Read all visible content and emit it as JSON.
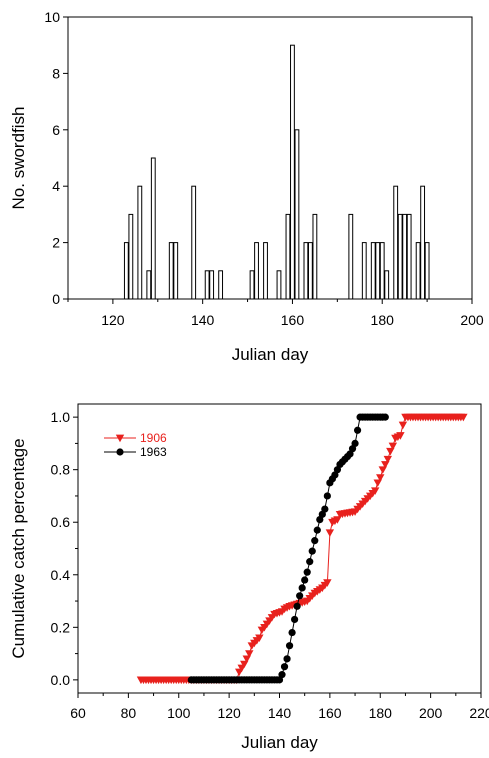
{
  "chart_data": [
    {
      "type": "bar",
      "xlabel": "Julian day",
      "ylabel": "No. swordfish",
      "xlim": [
        110,
        200
      ],
      "ylim": [
        0,
        10
      ],
      "xticks": [
        120,
        140,
        160,
        180,
        200
      ],
      "yticks": [
        0,
        2,
        4,
        6,
        8,
        10
      ],
      "grid": false,
      "x": [
        123,
        124,
        126,
        128,
        129,
        133,
        134,
        138,
        141,
        142,
        144,
        151,
        152,
        154,
        157,
        159,
        160,
        161,
        163,
        164,
        165,
        173,
        176,
        178,
        179,
        180,
        181,
        183,
        184,
        185,
        186,
        188,
        189,
        190
      ],
      "values": [
        2,
        3,
        4,
        1,
        5,
        2,
        2,
        4,
        1,
        1,
        1,
        1,
        2,
        2,
        1,
        3,
        9,
        6,
        2,
        2,
        3,
        3,
        2,
        2,
        2,
        2,
        1,
        4,
        3,
        3,
        3,
        2,
        4,
        2
      ]
    },
    {
      "type": "line",
      "xlabel": "Julian day",
      "ylabel": "Cumulative catch percentage",
      "xlim": [
        60,
        220
      ],
      "ylim": [
        -0.05,
        1.05
      ],
      "xticks": [
        60,
        80,
        100,
        120,
        140,
        160,
        180,
        200,
        220
      ],
      "yticks": [
        "0.0",
        "0.2",
        "0.4",
        "0.6",
        "0.8",
        "1.0"
      ],
      "grid": false,
      "legend_position": "top-left",
      "series": [
        {
          "name": "1906",
          "color": "#e8211d",
          "marker": "triangle-down",
          "points": [
            [
              85,
              0
            ],
            [
              123,
              0
            ],
            [
              124,
              0.03
            ],
            [
              126,
              0.06
            ],
            [
              128,
              0.1
            ],
            [
              129,
              0.13
            ],
            [
              132,
              0.16
            ],
            [
              133,
              0.19
            ],
            [
              134,
              0.2
            ],
            [
              138,
              0.25
            ],
            [
              141,
              0.26
            ],
            [
              142,
              0.27
            ],
            [
              144,
              0.28
            ],
            [
              151,
              0.3
            ],
            [
              152,
              0.31
            ],
            [
              154,
              0.33
            ],
            [
              157,
              0.35
            ],
            [
              159,
              0.37
            ],
            [
              160,
              0.56
            ],
            [
              161,
              0.6
            ],
            [
              163,
              0.61
            ],
            [
              164,
              0.63
            ],
            [
              170,
              0.64
            ],
            [
              173,
              0.67
            ],
            [
              176,
              0.7
            ],
            [
              178,
              0.72
            ],
            [
              179,
              0.75
            ],
            [
              180,
              0.77
            ],
            [
              181,
              0.8
            ],
            [
              183,
              0.84
            ],
            [
              184,
              0.87
            ],
            [
              185,
              0.89
            ],
            [
              186,
              0.92
            ],
            [
              188,
              0.93
            ],
            [
              189,
              0.97
            ],
            [
              190,
              1.0
            ],
            [
              213,
              1.0
            ]
          ]
        },
        {
          "name": "1963",
          "color": "#000000",
          "marker": "circle",
          "points": [
            [
              105,
              0
            ],
            [
              140,
              0
            ],
            [
              141,
              0.02
            ],
            [
              142,
              0.05
            ],
            [
              143,
              0.08
            ],
            [
              144,
              0.13
            ],
            [
              145,
              0.18
            ],
            [
              146,
              0.23
            ],
            [
              147,
              0.28
            ],
            [
              148,
              0.32
            ],
            [
              149,
              0.35
            ],
            [
              150,
              0.38
            ],
            [
              151,
              0.41
            ],
            [
              152,
              0.45
            ],
            [
              153,
              0.49
            ],
            [
              154,
              0.53
            ],
            [
              155,
              0.57
            ],
            [
              156,
              0.61
            ],
            [
              157,
              0.63
            ],
            [
              158,
              0.65
            ],
            [
              159,
              0.7
            ],
            [
              160,
              0.75
            ],
            [
              162,
              0.78
            ],
            [
              164,
              0.82
            ],
            [
              166,
              0.84
            ],
            [
              168,
              0.86
            ],
            [
              170,
              0.9
            ],
            [
              172,
              1.0
            ],
            [
              182,
              1.0
            ]
          ]
        }
      ]
    }
  ]
}
